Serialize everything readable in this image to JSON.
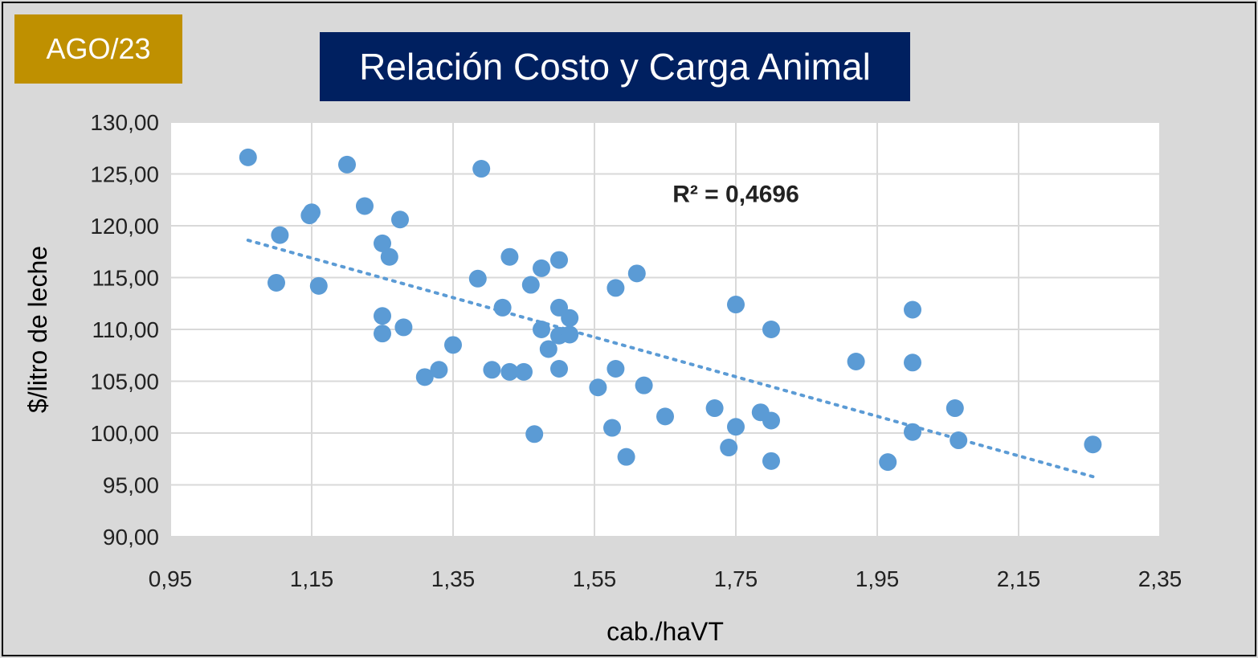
{
  "badge": {
    "label": "AGO/23",
    "color": "#bf9000"
  },
  "title_box": {
    "color": "#002060"
  },
  "colors": {
    "point": "#5b9bd5",
    "trend": "#5b9bd5",
    "plot_bg": "#ffffff",
    "grid": "#d9d9d9"
  },
  "chart_data": {
    "type": "scatter",
    "title": "Relación Costo y Carga Animal",
    "xlabel": "cab./haVT",
    "ylabel": "$/litro de leche",
    "xlim": [
      0.95,
      2.35
    ],
    "ylim": [
      90,
      130
    ],
    "x_ticks": [
      0.95,
      1.15,
      1.35,
      1.55,
      1.75,
      1.95,
      2.15,
      2.35
    ],
    "x_tick_labels": [
      "0,95",
      "1,15",
      "1,35",
      "1,55",
      "1,75",
      "1,95",
      "2,15",
      "2,35"
    ],
    "y_ticks": [
      90,
      95,
      100,
      105,
      110,
      115,
      120,
      125,
      130
    ],
    "y_tick_labels": [
      "90,00",
      "95,00",
      "100,00",
      "105,00",
      "110,00",
      "115,00",
      "120,00",
      "125,00",
      "130,00"
    ],
    "grid": true,
    "annotation": "R² = 0,4696",
    "annotation_pos": [
      1.75,
      122.3
    ],
    "trendline": {
      "type": "linear",
      "x": [
        1.06,
        2.26
      ],
      "y": [
        118.6,
        95.7
      ],
      "style": "dotted"
    },
    "points": [
      [
        1.06,
        126.6
      ],
      [
        1.2,
        125.9
      ],
      [
        1.39,
        125.5
      ],
      [
        1.225,
        121.9
      ],
      [
        1.15,
        121.3
      ],
      [
        1.147,
        121.0
      ],
      [
        1.275,
        120.6
      ],
      [
        1.105,
        119.1
      ],
      [
        1.25,
        118.3
      ],
      [
        1.26,
        117.0
      ],
      [
        1.43,
        117.0
      ],
      [
        1.5,
        116.7
      ],
      [
        1.475,
        115.9
      ],
      [
        1.61,
        115.4
      ],
      [
        1.1,
        114.5
      ],
      [
        1.16,
        114.2
      ],
      [
        1.385,
        114.9
      ],
      [
        1.46,
        114.3
      ],
      [
        1.58,
        114.0
      ],
      [
        1.75,
        112.4
      ],
      [
        2.0,
        111.9
      ],
      [
        1.42,
        112.1
      ],
      [
        1.5,
        112.1
      ],
      [
        1.25,
        111.3
      ],
      [
        1.515,
        111.1
      ],
      [
        1.28,
        110.2
      ],
      [
        1.475,
        110.0
      ],
      [
        1.8,
        110.0
      ],
      [
        1.25,
        109.6
      ],
      [
        1.5,
        109.4
      ],
      [
        1.515,
        109.5
      ],
      [
        1.35,
        108.5
      ],
      [
        1.485,
        108.1
      ],
      [
        1.92,
        106.9
      ],
      [
        2.0,
        106.8
      ],
      [
        1.33,
        106.1
      ],
      [
        1.405,
        106.1
      ],
      [
        1.43,
        105.9
      ],
      [
        1.45,
        105.9
      ],
      [
        1.5,
        106.2
      ],
      [
        1.58,
        106.2
      ],
      [
        1.31,
        105.4
      ],
      [
        1.555,
        104.4
      ],
      [
        1.62,
        104.6
      ],
      [
        1.72,
        102.4
      ],
      [
        2.06,
        102.4
      ],
      [
        1.785,
        102.0
      ],
      [
        1.65,
        101.6
      ],
      [
        1.8,
        101.2
      ],
      [
        1.75,
        100.6
      ],
      [
        1.575,
        100.5
      ],
      [
        2.0,
        100.1
      ],
      [
        1.465,
        99.9
      ],
      [
        2.065,
        99.3
      ],
      [
        1.74,
        98.6
      ],
      [
        2.255,
        98.9
      ],
      [
        1.595,
        97.7
      ],
      [
        1.8,
        97.3
      ],
      [
        1.965,
        97.2
      ]
    ]
  }
}
